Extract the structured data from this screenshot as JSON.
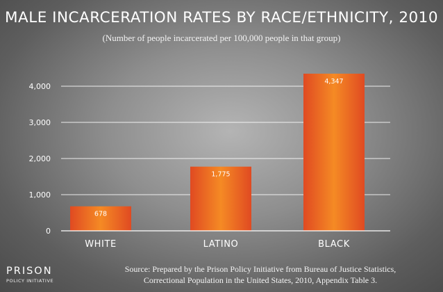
{
  "title": "MALE INCARCERATION RATES BY RACE/ETHNICITY, 2010",
  "subtitle": "(Number of people incarcerated per 100,000 people in that group)",
  "source": {
    "line1": "Source: Prepared by the Prison Policy Initiative from Bureau of Justice Statistics,",
    "line2": "Correctional Population in the United States, 2010, Appendix Table 3."
  },
  "logo": {
    "main": "PRISON",
    "sub": "POLICY INITIATIVE"
  },
  "colors": {
    "bar_center": "#f58a24",
    "bar_edge": "#e04a22",
    "axis": "#ffffff",
    "text": "#ffffff"
  },
  "chart_data": {
    "type": "bar",
    "categories": [
      "WHITE",
      "LATINO",
      "BLACK"
    ],
    "values": [
      678,
      1775,
      4347
    ],
    "value_labels": [
      "678",
      "1,775",
      "4,347"
    ],
    "y_ticks": [
      0,
      1000,
      2000,
      3000,
      4000
    ],
    "y_tick_labels": [
      "0",
      "1,000",
      "2,000",
      "3,000",
      "4,000"
    ],
    "ylim": [
      0,
      4500
    ],
    "grid": true
  }
}
